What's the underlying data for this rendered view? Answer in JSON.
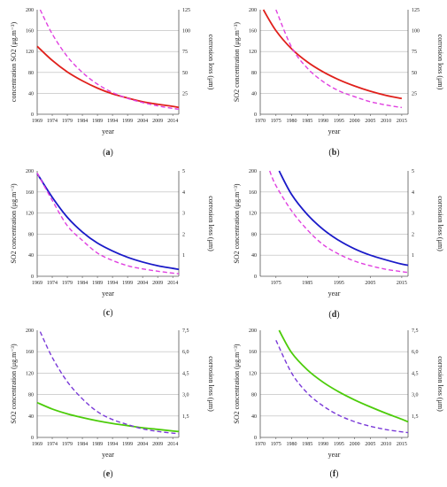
{
  "chart_data": [
    {
      "panel": "a",
      "type": "line",
      "xlabel": "year",
      "ylabel": "concentration SO2 (μg.m⁻³)",
      "ylabel_right": "corrosion loss (μm)",
      "label_text": "(a)",
      "label_letter": "a",
      "xticks": [
        "1969",
        "1974",
        "1979",
        "1984",
        "1989",
        "1994",
        "1999",
        "2004",
        "2009",
        "2014"
      ],
      "yticks_left": [
        "0",
        "40",
        "80",
        "120",
        "160",
        "200"
      ],
      "yticks_right": [
        "25",
        "50",
        "75",
        "100",
        "125"
      ],
      "xlim": [
        1969,
        2016
      ],
      "ylim_left": [
        0,
        200
      ],
      "ylim_right": [
        0,
        125
      ],
      "grid": true,
      "series": [
        {
          "axis": "left",
          "style": "solid",
          "color": "#e0201b",
          "x": [
            1969,
            1974,
            1979,
            1984,
            1989,
            1994,
            1999,
            2004,
            2009,
            2014,
            2016
          ],
          "y": [
            130,
            103,
            81,
            64,
            50,
            39,
            31,
            24,
            19,
            15,
            13
          ]
        },
        {
          "axis": "right",
          "style": "dashed",
          "color": "#e040e0",
          "x": [
            1970,
            1974,
            1979,
            1984,
            1989,
            1994,
            1999,
            2004,
            2009,
            2014,
            2016
          ],
          "y": [
            125,
            96,
            69,
            50,
            36,
            26,
            19,
            14,
            10,
            7,
            6
          ]
        }
      ]
    },
    {
      "panel": "b",
      "type": "line",
      "xlabel": "year",
      "ylabel": "SO2 concentration (μg.m⁻³)",
      "ylabel_right": "corrosion loss (μm)",
      "label_text": "(b)",
      "label_letter": "b",
      "xticks": [
        "1970",
        "1975",
        "1980",
        "1985",
        "1990",
        "1995",
        "2000",
        "2005",
        "2010",
        "2015"
      ],
      "yticks_left": [
        "0",
        "40",
        "80",
        "120",
        "160",
        "200"
      ],
      "yticks_right": [
        "25",
        "50",
        "75",
        "100",
        "125"
      ],
      "xlim": [
        1970,
        2017
      ],
      "ylim_left": [
        0,
        200
      ],
      "ylim_right": [
        0,
        125
      ],
      "grid": true,
      "series": [
        {
          "axis": "left",
          "style": "solid",
          "color": "#e0201b",
          "x": [
            1971,
            1975,
            1980,
            1985,
            1990,
            1995,
            2000,
            2005,
            2010,
            2015
          ],
          "y": [
            200,
            160,
            125,
            100,
            81,
            66,
            54,
            44,
            36,
            30
          ]
        },
        {
          "axis": "right",
          "style": "dashed",
          "color": "#e040e0",
          "x": [
            1975,
            1980,
            1985,
            1990,
            1995,
            2000,
            2005,
            2010,
            2015
          ],
          "y": [
            125,
            80,
            55,
            39,
            28,
            21,
            15,
            11,
            8
          ]
        }
      ]
    },
    {
      "panel": "c",
      "type": "line",
      "xlabel": "year",
      "ylabel": "SO2 concentration (μg.m⁻³)",
      "ylabel_right": "corrosion loss (μm)",
      "label_text": "(c)",
      "label_letter": "c",
      "xticks": [
        "1969",
        "1974",
        "1979",
        "1984",
        "1989",
        "1994",
        "1999",
        "2004",
        "2009",
        "2014"
      ],
      "yticks_left": [
        "0",
        "40",
        "80",
        "120",
        "160",
        "200"
      ],
      "yticks_right": [
        "1",
        "2",
        "3",
        "4",
        "5"
      ],
      "xlim": [
        1969,
        2016
      ],
      "ylim_left": [
        0,
        200
      ],
      "ylim_right": [
        0,
        5
      ],
      "grid": true,
      "series": [
        {
          "axis": "left",
          "style": "solid",
          "color": "#1a1ac8",
          "x": [
            1969,
            1974,
            1979,
            1984,
            1989,
            1994,
            1999,
            2004,
            2009,
            2014,
            2016
          ],
          "y": [
            195,
            150,
            112,
            84,
            63,
            48,
            36,
            27,
            20,
            15,
            13
          ]
        },
        {
          "axis": "right",
          "style": "dashed",
          "color": "#e040e0",
          "x": [
            1969,
            1974,
            1979,
            1984,
            1989,
            1994,
            1999,
            2004,
            2009,
            2014,
            2016
          ],
          "y": [
            4.9,
            3.6,
            2.4,
            1.7,
            1.1,
            0.75,
            0.5,
            0.35,
            0.24,
            0.15,
            0.12
          ]
        }
      ]
    },
    {
      "panel": "d",
      "type": "line",
      "xlabel": "year",
      "ylabel": "SO2 concentration (μg.m⁻³)",
      "ylabel_right": "corrosion loss (μm)",
      "label_text": "(d)",
      "label_letter": "d",
      "xticks": [
        "1975",
        "1985",
        "1995",
        "2005",
        "2015"
      ],
      "yticks_left": [
        "0",
        "40",
        "80",
        "120",
        "160",
        "200"
      ],
      "yticks_right": [
        "1",
        "2",
        "3",
        "4",
        "5"
      ],
      "xlim": [
        1970,
        2017
      ],
      "ylim_left": [
        0,
        200
      ],
      "ylim_right": [
        0,
        5
      ],
      "grid": true,
      "series": [
        {
          "axis": "left",
          "style": "solid",
          "color": "#1a1ac8",
          "x": [
            1976,
            1980,
            1985,
            1990,
            1995,
            2000,
            2005,
            2010,
            2015,
            2017
          ],
          "y": [
            200,
            155,
            117,
            89,
            68,
            52,
            40,
            31,
            23,
            21
          ]
        },
        {
          "axis": "right",
          "style": "dashed",
          "color": "#e040e0",
          "x": [
            1973,
            1975,
            1980,
            1985,
            1990,
            1995,
            2000,
            2005,
            2010,
            2015,
            2017
          ],
          "y": [
            5,
            4.3,
            3.1,
            2.2,
            1.5,
            1.05,
            0.72,
            0.5,
            0.33,
            0.22,
            0.18
          ]
        }
      ]
    },
    {
      "panel": "e",
      "type": "line",
      "xlabel": "year",
      "ylabel": "SO2 concentration (μg.m⁻³)",
      "ylabel_right": "corrosion loss (μm)",
      "label_text": "(e)",
      "label_letter": "e",
      "xticks": [
        "1969",
        "1974",
        "1979",
        "1984",
        "1989",
        "1994",
        "1999",
        "2004",
        "2009",
        "2014"
      ],
      "yticks_left": [
        "0",
        "40",
        "80",
        "120",
        "160",
        "200"
      ],
      "yticks_right": [
        "1,5",
        "3,0",
        "4,5",
        "6,0",
        "7,5"
      ],
      "xlim": [
        1969,
        2016
      ],
      "ylim_left": [
        0,
        200
      ],
      "ylim_right": [
        0,
        7.5
      ],
      "grid": true,
      "series": [
        {
          "axis": "left",
          "style": "solid",
          "color": "#4ccc0a",
          "x": [
            1969,
            1974,
            1979,
            1984,
            1989,
            1994,
            1999,
            2004,
            2009,
            2014,
            2016
          ],
          "y": [
            65,
            53,
            44,
            37,
            31,
            26,
            22,
            18,
            15,
            12,
            11
          ]
        },
        {
          "axis": "right",
          "style": "dashed",
          "color": "#7a3ad8",
          "x": [
            1970,
            1974,
            1979,
            1984,
            1989,
            1994,
            1999,
            2004,
            2009,
            2014,
            2016
          ],
          "y": [
            7.4,
            5.6,
            3.9,
            2.7,
            1.8,
            1.25,
            0.9,
            0.6,
            0.42,
            0.3,
            0.26
          ]
        }
      ]
    },
    {
      "panel": "f",
      "type": "line",
      "xlabel": "year",
      "ylabel": "SO2 concentration (μg.m⁻³)",
      "ylabel_right": "corrosion loss (μm)",
      "label_text": "(f)",
      "label_letter": "f",
      "xticks": [
        "1970",
        "1975",
        "1980",
        "1985",
        "1990",
        "1995",
        "2000",
        "2005",
        "2010",
        "2015"
      ],
      "yticks_left": [
        "0",
        "40",
        "80",
        "120",
        "160",
        "200"
      ],
      "yticks_right": [
        "1,5",
        "3,0",
        "4,5",
        "6,0",
        "7,5"
      ],
      "xlim": [
        1970,
        2017
      ],
      "ylim_left": [
        0,
        200
      ],
      "ylim_right": [
        0,
        7.5
      ],
      "grid": true,
      "series": [
        {
          "axis": "left",
          "style": "solid",
          "color": "#4ccc0a",
          "x": [
            1976,
            1980,
            1985,
            1990,
            1995,
            2000,
            2005,
            2010,
            2015,
            2017
          ],
          "y": [
            200,
            158,
            126,
            103,
            85,
            70,
            57,
            45,
            34,
            29
          ]
        },
        {
          "axis": "right",
          "style": "dashed",
          "color": "#7a3ad8",
          "x": [
            1975,
            1980,
            1985,
            1990,
            1995,
            2000,
            2005,
            2010,
            2015,
            2017
          ],
          "y": [
            6.8,
            4.5,
            3.1,
            2.2,
            1.55,
            1.1,
            0.78,
            0.55,
            0.39,
            0.34
          ]
        }
      ]
    }
  ]
}
